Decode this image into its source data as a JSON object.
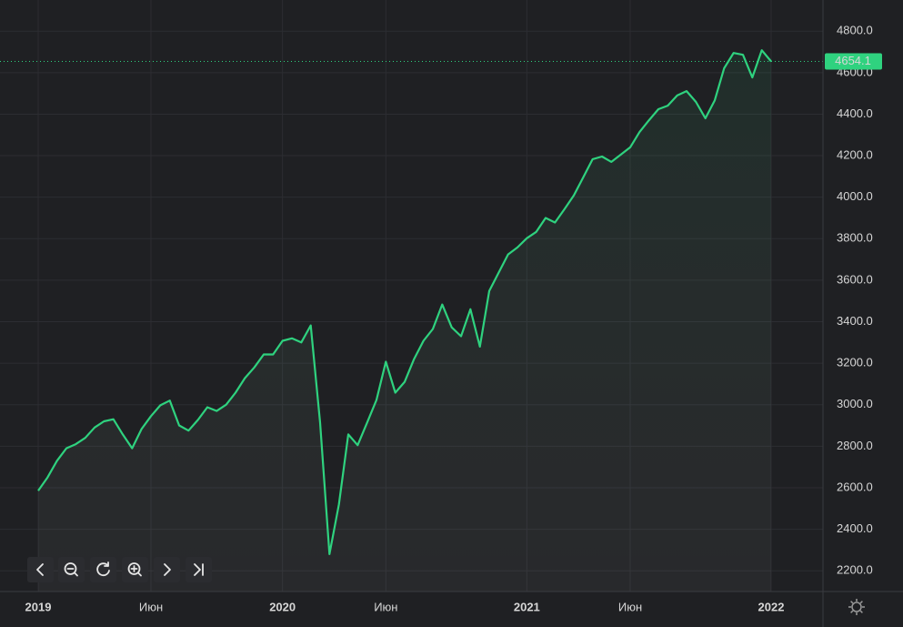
{
  "chart_data": {
    "type": "line",
    "categories": [
      "2019",
      null,
      null,
      null,
      null,
      null,
      null,
      null,
      null,
      null,
      null,
      null,
      "Июн",
      null,
      null,
      null,
      null,
      null,
      null,
      null,
      null,
      null,
      null,
      null,
      null,
      null,
      "2020",
      null,
      null,
      null,
      null,
      null,
      null,
      null,
      null,
      null,
      null,
      "Июн",
      null,
      null,
      null,
      null,
      null,
      null,
      null,
      null,
      null,
      null,
      null,
      null,
      null,
      null,
      "2021",
      null,
      null,
      null,
      null,
      null,
      null,
      null,
      null,
      null,
      null,
      "Июн",
      null,
      null,
      null,
      null,
      null,
      null,
      null,
      null,
      null,
      null,
      null,
      null,
      null,
      null,
      "2022"
    ],
    "values": [
      2586,
      2650,
      2730,
      2790,
      2810,
      2840,
      2890,
      2920,
      2930,
      2857,
      2790,
      2883,
      2945,
      2997,
      3020,
      2900,
      2875,
      2927,
      2988,
      2970,
      3000,
      3058,
      3128,
      3180,
      3242,
      3242,
      3308,
      3320,
      3300,
      3382,
      2914,
      2280,
      2520,
      2857,
      2805,
      2914,
      3023,
      3207,
      3058,
      3110,
      3220,
      3308,
      3365,
      3483,
      3373,
      3330,
      3460,
      3280,
      3548,
      3636,
      3724,
      3758,
      3802,
      3833,
      3900,
      3878,
      3942,
      4008,
      4095,
      4183,
      4196,
      4170,
      4205,
      4240,
      4314,
      4371,
      4424,
      4441,
      4490,
      4511,
      4459,
      4380,
      4467,
      4621,
      4695,
      4686,
      4577,
      4708,
      4654.1
    ],
    "color": "#2fd27f",
    "ylim": [
      2100,
      4950
    ],
    "yticks": [
      {
        "value": 2200,
        "label": "2200.0"
      },
      {
        "value": 2400,
        "label": "2400.0"
      },
      {
        "value": 2600,
        "label": "2600.0"
      },
      {
        "value": 2800,
        "label": "2800.0"
      },
      {
        "value": 3000,
        "label": "3000.0"
      },
      {
        "value": 3200,
        "label": "3200.0"
      },
      {
        "value": 3400,
        "label": "3400.0"
      },
      {
        "value": 3600,
        "label": "3600.0"
      },
      {
        "value": 3800,
        "label": "3800.0"
      },
      {
        "value": 4000,
        "label": "4000.0"
      },
      {
        "value": 4200,
        "label": "4200.0"
      },
      {
        "value": 4400,
        "label": "4400.0"
      },
      {
        "value": 4600,
        "label": "4600.0"
      },
      {
        "value": 4800,
        "label": "4800.0"
      }
    ],
    "grid": true
  }
}
